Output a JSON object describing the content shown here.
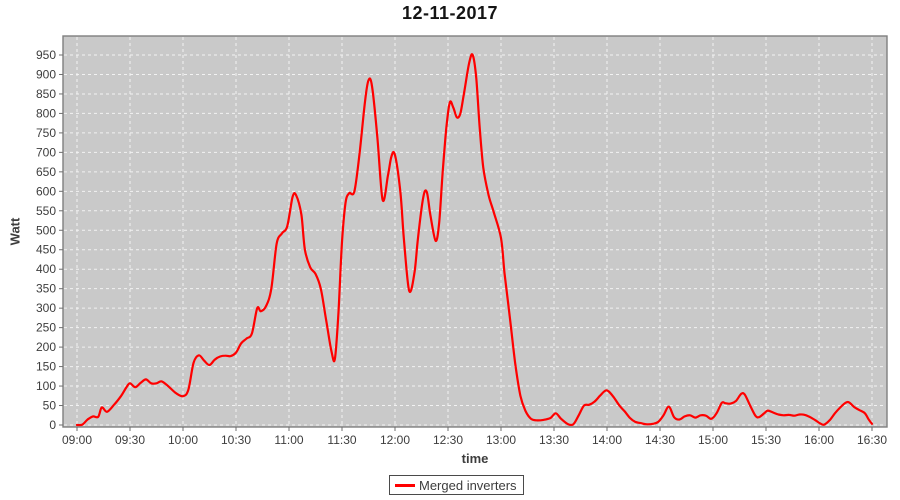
{
  "title": "12-11-2017",
  "legend": {
    "label": "Merged inverters"
  },
  "colors": {
    "line": "#ff0000",
    "plot_bg": "#c9c9c9",
    "grid": "#f2f2f2",
    "plot_border": "#7f7f7f",
    "tick": "#6f6f6f",
    "text": "#3d3d3d",
    "title_text": "#141414"
  },
  "chart_data": {
    "type": "line",
    "title": "12-11-2017",
    "xlabel": "time",
    "ylabel": "Watt",
    "grid": true,
    "legend_position": "bottom-center",
    "ylim": [
      0,
      1000
    ],
    "y_ticks": [
      0,
      50,
      100,
      150,
      200,
      250,
      300,
      350,
      400,
      450,
      500,
      550,
      600,
      650,
      700,
      750,
      800,
      850,
      900,
      950
    ],
    "x_ticks": [
      "09:00",
      "09:30",
      "10:00",
      "10:30",
      "11:00",
      "11:30",
      "12:00",
      "12:30",
      "13:00",
      "13:30",
      "14:00",
      "14:30",
      "15:00",
      "15:30",
      "16:00",
      "16:30"
    ],
    "series": [
      {
        "name": "Merged inverters",
        "color": "#ff0000",
        "points": [
          [
            "09:00",
            0
          ],
          [
            "09:03",
            1
          ],
          [
            "09:06",
            14
          ],
          [
            "09:09",
            22
          ],
          [
            "09:12",
            21
          ],
          [
            "09:14",
            45
          ],
          [
            "09:17",
            34
          ],
          [
            "09:21",
            52
          ],
          [
            "09:25",
            75
          ],
          [
            "09:28",
            97
          ],
          [
            "09:30",
            107
          ],
          [
            "09:33",
            97
          ],
          [
            "09:36",
            108
          ],
          [
            "09:39",
            117
          ],
          [
            "09:42",
            107
          ],
          [
            "09:45",
            107
          ],
          [
            "09:48",
            112
          ],
          [
            "09:52",
            98
          ],
          [
            "09:56",
            82
          ],
          [
            "10:00",
            74
          ],
          [
            "10:03",
            90
          ],
          [
            "10:06",
            160
          ],
          [
            "10:09",
            179
          ],
          [
            "10:12",
            165
          ],
          [
            "10:15",
            154
          ],
          [
            "10:18",
            168
          ],
          [
            "10:21",
            176
          ],
          [
            "10:24",
            178
          ],
          [
            "10:27",
            177
          ],
          [
            "10:30",
            186
          ],
          [
            "10:33",
            210
          ],
          [
            "10:36",
            222
          ],
          [
            "10:39",
            235
          ],
          [
            "10:42",
            300
          ],
          [
            "10:44",
            292
          ],
          [
            "10:47",
            305
          ],
          [
            "10:50",
            350
          ],
          [
            "10:53",
            465
          ],
          [
            "10:56",
            492
          ],
          [
            "10:59",
            510
          ],
          [
            "11:02",
            585
          ],
          [
            "11:04",
            590
          ],
          [
            "11:07",
            540
          ],
          [
            "11:09",
            450
          ],
          [
            "11:12",
            405
          ],
          [
            "11:15",
            388
          ],
          [
            "11:18",
            350
          ],
          [
            "11:21",
            270
          ],
          [
            "11:24",
            190
          ],
          [
            "11:26",
            170
          ],
          [
            "11:28",
            290
          ],
          [
            "11:30",
            470
          ],
          [
            "11:32",
            570
          ],
          [
            "11:34",
            595
          ],
          [
            "11:37",
            600
          ],
          [
            "11:40",
            700
          ],
          [
            "11:43",
            830
          ],
          [
            "11:45",
            885
          ],
          [
            "11:47",
            870
          ],
          [
            "11:50",
            740
          ],
          [
            "11:53",
            578
          ],
          [
            "11:56",
            640
          ],
          [
            "11:58",
            690
          ],
          [
            "12:00",
            693
          ],
          [
            "12:03",
            600
          ],
          [
            "12:05",
            480
          ],
          [
            "12:08",
            345
          ],
          [
            "12:11",
            390
          ],
          [
            "12:13",
            480
          ],
          [
            "12:16",
            585
          ],
          [
            "12:18",
            598
          ],
          [
            "12:20",
            540
          ],
          [
            "12:23",
            473
          ],
          [
            "12:25",
            520
          ],
          [
            "12:27",
            650
          ],
          [
            "12:29",
            760
          ],
          [
            "12:31",
            828
          ],
          [
            "12:33",
            815
          ],
          [
            "12:35",
            790
          ],
          [
            "12:37",
            800
          ],
          [
            "12:39",
            850
          ],
          [
            "12:42",
            930
          ],
          [
            "12:44",
            950
          ],
          [
            "12:46",
            890
          ],
          [
            "12:48",
            760
          ],
          [
            "12:50",
            660
          ],
          [
            "12:53",
            590
          ],
          [
            "12:56",
            545
          ],
          [
            "13:00",
            480
          ],
          [
            "13:02",
            390
          ],
          [
            "13:05",
            277
          ],
          [
            "13:08",
            160
          ],
          [
            "13:11",
            75
          ],
          [
            "13:14",
            35
          ],
          [
            "13:17",
            16
          ],
          [
            "13:20",
            12
          ],
          [
            "13:24",
            13
          ],
          [
            "13:28",
            18
          ],
          [
            "13:31",
            30
          ],
          [
            "13:34",
            16
          ],
          [
            "13:38",
            2
          ],
          [
            "13:41",
            2
          ],
          [
            "13:44",
            25
          ],
          [
            "13:47",
            50
          ],
          [
            "13:50",
            52
          ],
          [
            "13:53",
            60
          ],
          [
            "13:56",
            75
          ],
          [
            "13:59",
            88
          ],
          [
            "14:01",
            86
          ],
          [
            "14:04",
            70
          ],
          [
            "14:07",
            50
          ],
          [
            "14:10",
            35
          ],
          [
            "14:13",
            18
          ],
          [
            "14:16",
            8
          ],
          [
            "14:19",
            5
          ],
          [
            "14:22",
            2
          ],
          [
            "14:26",
            3
          ],
          [
            "14:29",
            8
          ],
          [
            "14:32",
            25
          ],
          [
            "14:35",
            47
          ],
          [
            "14:38",
            20
          ],
          [
            "14:41",
            14
          ],
          [
            "14:44",
            22
          ],
          [
            "14:47",
            25
          ],
          [
            "14:50",
            19
          ],
          [
            "14:53",
            25
          ],
          [
            "14:56",
            24
          ],
          [
            "14:59",
            16
          ],
          [
            "15:02",
            30
          ],
          [
            "15:05",
            57
          ],
          [
            "15:07",
            56
          ],
          [
            "15:10",
            55
          ],
          [
            "15:13",
            62
          ],
          [
            "15:16",
            80
          ],
          [
            "15:18",
            78
          ],
          [
            "15:21",
            50
          ],
          [
            "15:24",
            24
          ],
          [
            "15:26",
            20
          ],
          [
            "15:29",
            30
          ],
          [
            "15:31",
            37
          ],
          [
            "15:34",
            32
          ],
          [
            "15:37",
            27
          ],
          [
            "15:40",
            25
          ],
          [
            "15:43",
            26
          ],
          [
            "15:46",
            24
          ],
          [
            "15:49",
            27
          ],
          [
            "15:52",
            26
          ],
          [
            "15:55",
            20
          ],
          [
            "15:58",
            12
          ],
          [
            "16:01",
            3
          ],
          [
            "16:03",
            1
          ],
          [
            "16:06",
            12
          ],
          [
            "16:09",
            30
          ],
          [
            "16:12",
            45
          ],
          [
            "16:15",
            57
          ],
          [
            "16:17",
            58
          ],
          [
            "16:20",
            46
          ],
          [
            "16:23",
            38
          ],
          [
            "16:26",
            30
          ],
          [
            "16:28",
            15
          ],
          [
            "16:30",
            3
          ]
        ]
      }
    ]
  }
}
